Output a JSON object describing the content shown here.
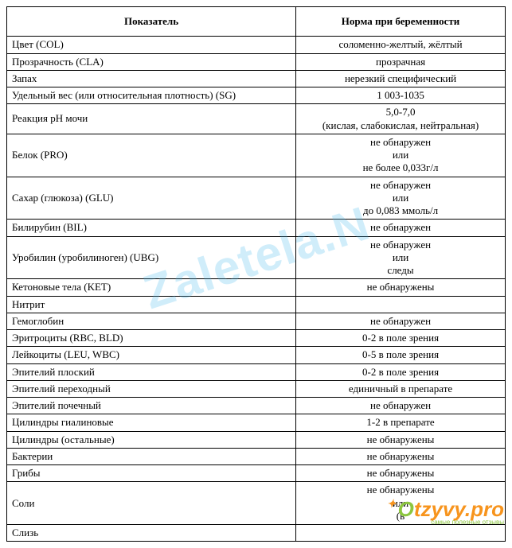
{
  "watermark": "Zaletela.N",
  "logo": {
    "text1": "O",
    "text2": "tzyvy.pro",
    "sub": "самые полезные отзывы"
  },
  "table": {
    "header": {
      "param": "Показатель",
      "norm": "Норма при беременности"
    },
    "col_widths": [
      "58%",
      "42%"
    ],
    "rows": [
      {
        "param": "Цвет (COL)",
        "norm": "соломенно-желтый, жёлтый"
      },
      {
        "param": "Прозрачность (CLA)",
        "norm": "прозрачная"
      },
      {
        "param": "Запах",
        "norm": "нерезкий специфический"
      },
      {
        "param": "Удельный вес (или относительная плотность) (SG)",
        "norm": "1 003-1035"
      },
      {
        "param": "Реакция pH мочи",
        "norm": "5,0-7,0\n(кислая, слабокислая, нейтральная)"
      },
      {
        "param": "Белок (PRO)",
        "norm": "не обнаружен\nили\nне более 0,033г/л"
      },
      {
        "param": "Сахар (глюкоза) (GLU)",
        "norm": "не обнаружен\nили\nдо 0,083 ммоль/л"
      },
      {
        "param": "Билирубин (BIL)",
        "norm": "не обнаружен"
      },
      {
        "param": "Уробилин (уробилиноген) (UBG)",
        "norm": "не обнаружен\nили\nследы"
      },
      {
        "param": "Кетоновые тела (KET)",
        "norm": "не обнаружены"
      },
      {
        "param": "Нитрит",
        "norm": ""
      },
      {
        "param": "Гемоглобин",
        "norm": "не обнаружен"
      },
      {
        "param": "Эритроциты (RBC, BLD)",
        "norm": "0-2 в поле зрения"
      },
      {
        "param": "Лейкоциты (LEU, WBC)",
        "norm": "0-5 в поле зрения"
      },
      {
        "param": "Эпителий плоский",
        "norm": "0-2 в поле зрения"
      },
      {
        "param": "Эпителий переходный",
        "norm": "единичный в препарате"
      },
      {
        "param": "Эпителий почечный",
        "norm": "не обнаружен"
      },
      {
        "param": "Цилиндры гиалиновые",
        "norm": "1-2 в препарате"
      },
      {
        "param": "Цилиндры (остальные)",
        "norm": "не обнаружены"
      },
      {
        "param": "Бактерии",
        "norm": "не обнаружены"
      },
      {
        "param": "Грибы",
        "norm": "не обнаружены"
      },
      {
        "param": "Соли",
        "norm": "не обнаружены\nили\n(в"
      },
      {
        "param": "Слизь",
        "norm": ""
      }
    ]
  }
}
